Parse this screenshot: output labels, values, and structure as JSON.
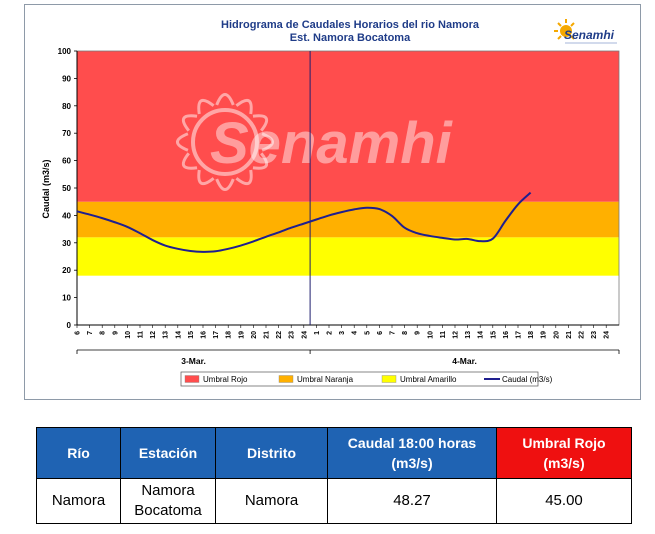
{
  "chart_data": {
    "type": "line",
    "title": "Hidrograma de Caudales Horarios del rio Namora",
    "subtitle": "Est. Namora Bocatoma",
    "ylabel": "Caudal  (m3/s)",
    "ylim": [
      0,
      100
    ],
    "yticks": [
      "0",
      "10",
      "20",
      "30",
      "40",
      "50",
      "60",
      "70",
      "80",
      "90",
      "100"
    ],
    "x_ticks": [
      "6",
      "7",
      "8",
      "9",
      "10",
      "11",
      "12",
      "13",
      "14",
      "15",
      "16",
      "17",
      "18",
      "19",
      "20",
      "21",
      "22",
      "23",
      "24",
      "1",
      "2",
      "3",
      "4",
      "5",
      "6",
      "7",
      "8",
      "9",
      "10",
      "11",
      "12",
      "13",
      "14",
      "15",
      "16",
      "17",
      "18",
      "19",
      "20",
      "21",
      "22",
      "23",
      "24"
    ],
    "day_labels": [
      "3-Mar.",
      "4-Mar."
    ],
    "threshold_bands": [
      {
        "name": "Umbral Amarillo",
        "from": 18,
        "to": 32,
        "color": "#ffff00"
      },
      {
        "name": "Umbral Naranja",
        "from": 32,
        "to": 45,
        "color": "#ffb000"
      },
      {
        "name": "Umbral Rojo",
        "from": 45,
        "to": 100,
        "color": "#ff4d4d"
      }
    ],
    "series": [
      {
        "name": "Caudal (m3/s)",
        "color": "#1f1f8f",
        "x": [
          0,
          1,
          2,
          3,
          4,
          5,
          6,
          7,
          8,
          9,
          10,
          11,
          12,
          13,
          14,
          15,
          16,
          17,
          18,
          19,
          20,
          21,
          22,
          23,
          24,
          25,
          26,
          27,
          28,
          29,
          30,
          31,
          32,
          33,
          34,
          35,
          36
        ],
        "values": [
          41.5,
          40.3,
          39.0,
          37.5,
          35.8,
          33.5,
          31.0,
          29.0,
          27.8,
          27.0,
          26.7,
          26.9,
          27.8,
          29.0,
          30.5,
          32.2,
          33.8,
          35.5,
          37.0,
          38.5,
          40.0,
          41.2,
          42.2,
          42.8,
          42.3,
          39.8,
          35.5,
          33.5,
          32.5,
          31.8,
          31.2,
          31.4,
          30.6,
          31.5,
          38.0,
          44.0,
          48.3
        ]
      }
    ],
    "legend": [
      "Umbral Rojo",
      "Umbral Naranja",
      "Umbral Amarillo",
      "Caudal (m3/s)"
    ],
    "legend_position": "bottom"
  },
  "watermark": "Senamhi",
  "logo": {
    "text": "Senamhi"
  },
  "table": {
    "headers": {
      "rio": "Río",
      "estacion": "Estación",
      "distrito": "Distrito",
      "caudal_l1": "Caudal  18:00 horas",
      "caudal_l2": "(m3/s)",
      "umbral_l1": "Umbral Rojo",
      "umbral_l2": "(m3/s)"
    },
    "row": {
      "rio": "Namora",
      "estacion_l1": "Namora",
      "estacion_l2": "Bocatoma",
      "distrito": "Namora",
      "caudal": "48.27",
      "umbral": "45.00"
    }
  }
}
